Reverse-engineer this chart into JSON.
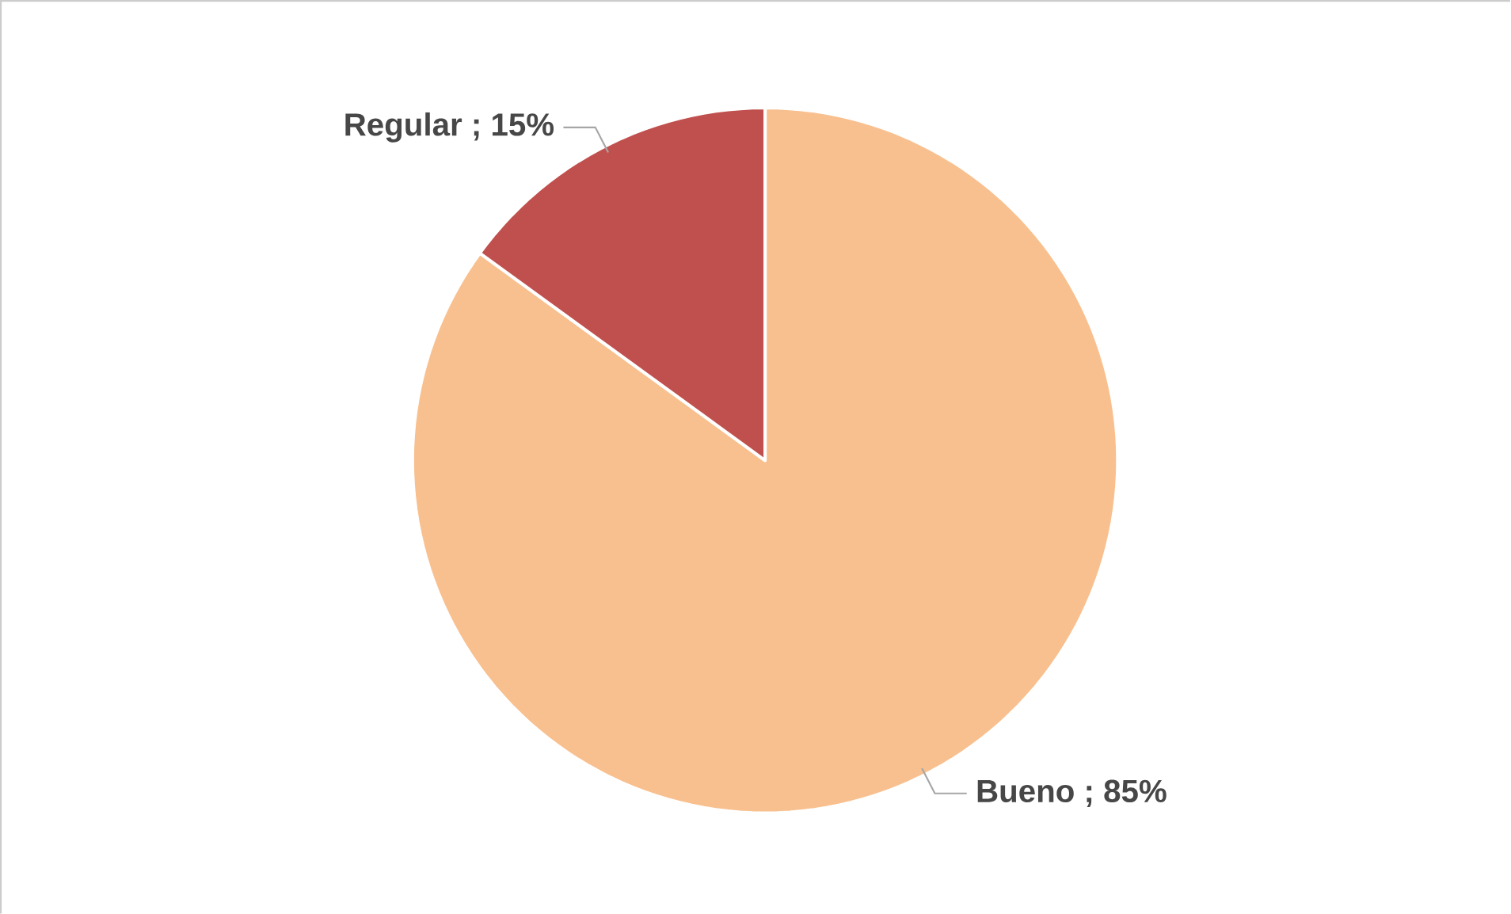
{
  "chart_data": {
    "type": "pie",
    "categories": [
      "Bueno",
      "Regular"
    ],
    "values": [
      85,
      15
    ],
    "value_labels": [
      "; 85%",
      "; 15%"
    ],
    "colors": [
      "#f9c08f",
      "#c0504d"
    ],
    "data_labels": true
  }
}
